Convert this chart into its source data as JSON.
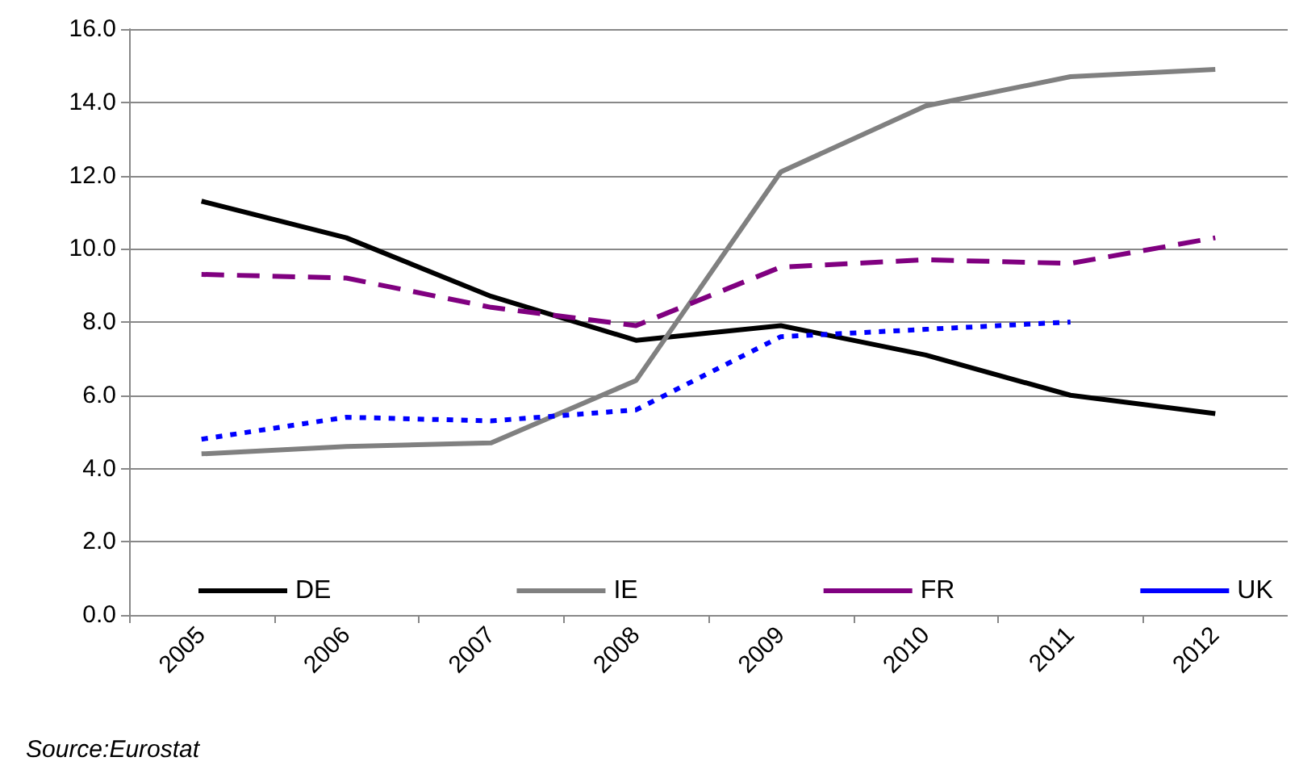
{
  "chart_data": {
    "type": "line",
    "categories": [
      "2005",
      "2006",
      "2007",
      "2008",
      "2009",
      "2010",
      "2011",
      "2012"
    ],
    "series": [
      {
        "name": "DE",
        "color": "#000000",
        "line_style": "solid",
        "values": [
          11.3,
          10.3,
          8.7,
          7.5,
          7.9,
          7.1,
          6.0,
          5.5
        ]
      },
      {
        "name": "IE",
        "color": "#808080",
        "line_style": "solid",
        "values": [
          4.4,
          4.6,
          4.7,
          6.4,
          12.1,
          13.9,
          14.7,
          14.9
        ]
      },
      {
        "name": "FR",
        "color": "#800080",
        "line_style": "dashed",
        "values": [
          9.3,
          9.2,
          8.4,
          7.9,
          9.5,
          9.7,
          9.6,
          10.3
        ]
      },
      {
        "name": "UK",
        "color": "#0000ff",
        "line_style": "dotted",
        "values": [
          4.8,
          5.4,
          5.3,
          5.6,
          7.6,
          7.8,
          8.0,
          null
        ]
      }
    ],
    "ylim": [
      0,
      16
    ],
    "yticks": [
      {
        "value": 0,
        "label": "0.0"
      },
      {
        "value": 2,
        "label": "2.0"
      },
      {
        "value": 4,
        "label": "4.0"
      },
      {
        "value": 6,
        "label": "6.0"
      },
      {
        "value": 8,
        "label": "8.0"
      },
      {
        "value": 10,
        "label": "10.0"
      },
      {
        "value": 12,
        "label": "12.0"
      },
      {
        "value": 14,
        "label": "14.0"
      },
      {
        "value": 16,
        "label": "16.0"
      }
    ],
    "grid": "y",
    "legend": "bottom",
    "marker": "none",
    "annotations": [
      "Source:Eurostat"
    ]
  }
}
